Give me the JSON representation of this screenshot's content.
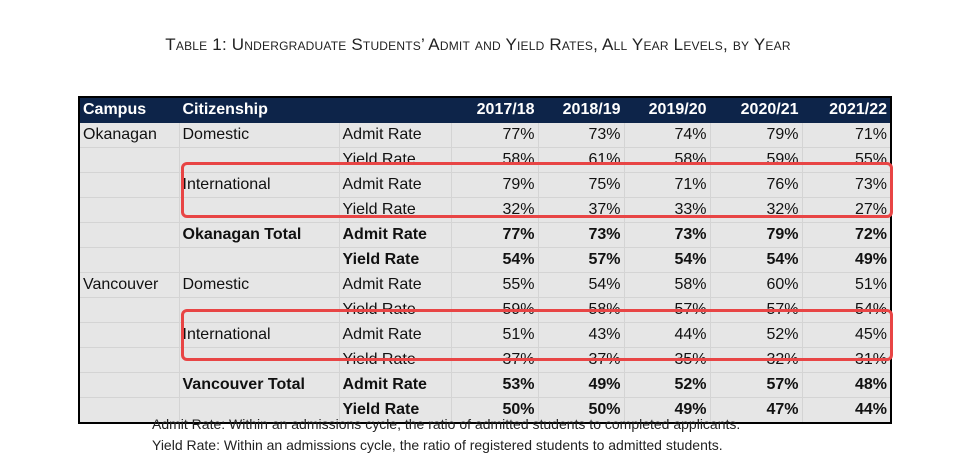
{
  "title": "Table 1: Undergraduate Students’ Admit and Yield Rates, All Year Levels, by Year",
  "table": {
    "headers": [
      "Campus",
      "Citizenship",
      "",
      "2017/18",
      "2018/19",
      "2019/20",
      "2020/21",
      "2021/22"
    ],
    "rows": [
      {
        "campus": "Okanagan",
        "citizenship": "Domestic",
        "measure": "Admit Rate",
        "values": [
          "77%",
          "73%",
          "74%",
          "79%",
          "71%"
        ],
        "type": "normal"
      },
      {
        "campus": "",
        "citizenship": "",
        "measure": "Yield Rate",
        "values": [
          "58%",
          "61%",
          "58%",
          "59%",
          "55%"
        ],
        "type": "normal"
      },
      {
        "campus": "",
        "citizenship": "International",
        "measure": "Admit Rate",
        "values": [
          "79%",
          "75%",
          "71%",
          "76%",
          "73%"
        ],
        "type": "normal"
      },
      {
        "campus": "",
        "citizenship": "",
        "measure": "Yield Rate",
        "values": [
          "32%",
          "37%",
          "33%",
          "32%",
          "27%"
        ],
        "type": "normal"
      },
      {
        "campus": "",
        "citizenship": "Okanagan Total",
        "measure": "Admit Rate",
        "values": [
          "77%",
          "73%",
          "73%",
          "79%",
          "72%"
        ],
        "type": "tot-ok"
      },
      {
        "campus": "",
        "citizenship": "",
        "measure": "Yield Rate",
        "values": [
          "54%",
          "57%",
          "54%",
          "54%",
          "49%"
        ],
        "type": "tot-ok"
      },
      {
        "campus": "Vancouver",
        "citizenship": "Domestic",
        "measure": "Admit Rate",
        "values": [
          "55%",
          "54%",
          "58%",
          "60%",
          "51%"
        ],
        "type": "normal"
      },
      {
        "campus": "",
        "citizenship": "",
        "measure": "Yield Rate",
        "values": [
          "59%",
          "58%",
          "57%",
          "57%",
          "54%"
        ],
        "type": "normal"
      },
      {
        "campus": "",
        "citizenship": "International",
        "measure": "Admit Rate",
        "values": [
          "51%",
          "43%",
          "44%",
          "52%",
          "45%"
        ],
        "type": "normal"
      },
      {
        "campus": "",
        "citizenship": "",
        "measure": "Yield Rate",
        "values": [
          "37%",
          "37%",
          "35%",
          "32%",
          "31%"
        ],
        "type": "normal"
      },
      {
        "campus": "",
        "citizenship": "Vancouver Total",
        "measure": "Admit Rate",
        "values": [
          "53%",
          "49%",
          "52%",
          "57%",
          "48%"
        ],
        "type": "tot-va"
      },
      {
        "campus": "",
        "citizenship": "",
        "measure": "Yield Rate",
        "values": [
          "50%",
          "50%",
          "49%",
          "47%",
          "44%"
        ],
        "type": "tot-va"
      }
    ]
  },
  "notes": [
    "Admit Rate: Within an admissions cycle, the ratio of admitted students to completed applicants.",
    "Yield Rate: Within an admissions cycle, the ratio of registered students to admitted students."
  ],
  "colors": {
    "header": "#0d2449",
    "okanagan_total": "#a6c4ec",
    "vancouver_total": "#b5e0f5",
    "highlight_box": "#e84545"
  }
}
